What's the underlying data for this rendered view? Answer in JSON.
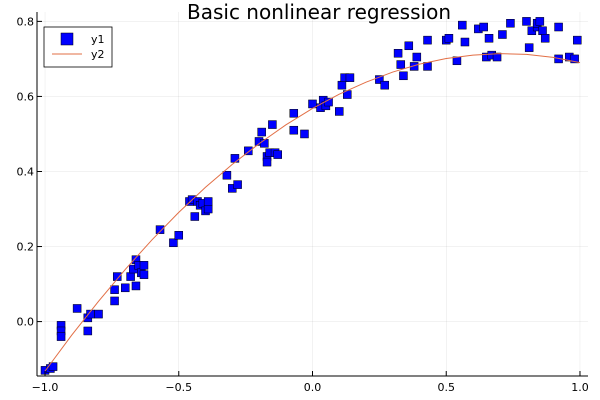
{
  "chart_data": {
    "type": "scatter",
    "title": "Basic nonlinear regression",
    "xlabel": "",
    "ylabel": "",
    "xlim": [
      -1.03,
      1.03
    ],
    "ylim": [
      -0.145,
      0.825
    ],
    "xticks": [
      -1.0,
      -0.5,
      0.0,
      0.5,
      1.0
    ],
    "xtick_labels": [
      "−1.0",
      "−0.5",
      "0.0",
      "0.5",
      "1.0"
    ],
    "yticks": [
      0.0,
      0.2,
      0.4,
      0.6,
      0.8
    ],
    "ytick_labels": [
      "0.0",
      "0.2",
      "0.4",
      "0.6",
      "0.8"
    ],
    "grid": true,
    "legend_position": "top-left",
    "series": [
      {
        "name": "y1",
        "kind": "scatter",
        "marker": "square",
        "color": "#0000ff",
        "x": [
          -1.0,
          -0.98,
          -0.97,
          -0.94,
          -0.94,
          -0.94,
          -0.88,
          -0.84,
          -0.84,
          -0.83,
          -0.8,
          -0.74,
          -0.74,
          -0.73,
          -0.7,
          -0.68,
          -0.67,
          -0.66,
          -0.66,
          -0.65,
          -0.64,
          -0.63,
          -0.63,
          -0.57,
          -0.52,
          -0.5,
          -0.46,
          -0.45,
          -0.44,
          -0.43,
          -0.42,
          -0.41,
          -0.4,
          -0.39,
          -0.39,
          -0.32,
          -0.3,
          -0.29,
          -0.28,
          -0.24,
          -0.2,
          -0.19,
          -0.18,
          -0.17,
          -0.17,
          -0.16,
          -0.15,
          -0.14,
          -0.13,
          -0.07,
          -0.07,
          -0.03,
          0.0,
          0.03,
          0.04,
          0.05,
          0.06,
          0.1,
          0.11,
          0.12,
          0.13,
          0.14,
          0.25,
          0.27,
          0.32,
          0.33,
          0.34,
          0.36,
          0.38,
          0.39,
          0.43,
          0.43,
          0.5,
          0.51,
          0.54,
          0.56,
          0.57,
          0.62,
          0.64,
          0.65,
          0.66,
          0.67,
          0.69,
          0.71,
          0.74,
          0.8,
          0.81,
          0.82,
          0.84,
          0.84,
          0.85,
          0.86,
          0.87,
          0.92,
          0.92,
          0.96,
          0.98,
          0.99
        ],
        "y": [
          -0.13,
          -0.125,
          -0.12,
          -0.01,
          -0.025,
          -0.04,
          0.035,
          0.01,
          -0.025,
          0.02,
          0.02,
          0.085,
          0.055,
          0.12,
          0.09,
          0.12,
          0.14,
          0.165,
          0.095,
          0.15,
          0.13,
          0.15,
          0.125,
          0.245,
          0.21,
          0.23,
          0.32,
          0.325,
          0.28,
          0.32,
          0.31,
          0.315,
          0.295,
          0.3,
          0.32,
          0.39,
          0.355,
          0.435,
          0.365,
          0.455,
          0.48,
          0.505,
          0.475,
          0.44,
          0.425,
          0.45,
          0.525,
          0.45,
          0.445,
          0.51,
          0.555,
          0.5,
          0.58,
          0.57,
          0.59,
          0.575,
          0.585,
          0.56,
          0.63,
          0.65,
          0.605,
          0.65,
          0.645,
          0.63,
          0.715,
          0.685,
          0.655,
          0.735,
          0.68,
          0.705,
          0.68,
          0.75,
          0.75,
          0.755,
          0.695,
          0.79,
          0.745,
          0.78,
          0.785,
          0.705,
          0.755,
          0.71,
          0.705,
          0.765,
          0.795,
          0.8,
          0.73,
          0.775,
          0.785,
          0.795,
          0.8,
          0.775,
          0.755,
          0.785,
          0.7,
          0.705,
          0.7,
          0.75
        ]
      },
      {
        "name": "y2",
        "kind": "line",
        "color": "#e26f46",
        "x": [
          -1.0,
          -0.9,
          -0.8,
          -0.7,
          -0.6,
          -0.5,
          -0.4,
          -0.3,
          -0.2,
          -0.1,
          0.0,
          0.1,
          0.2,
          0.3,
          0.4,
          0.5,
          0.6,
          0.7,
          0.8,
          0.9,
          1.0
        ],
        "y": [
          -0.132,
          -0.036,
          0.054,
          0.139,
          0.218,
          0.291,
          0.358,
          0.419,
          0.474,
          0.524,
          0.568,
          0.606,
          0.638,
          0.665,
          0.686,
          0.701,
          0.71,
          0.714,
          0.712,
          0.704,
          0.69
        ]
      }
    ]
  }
}
